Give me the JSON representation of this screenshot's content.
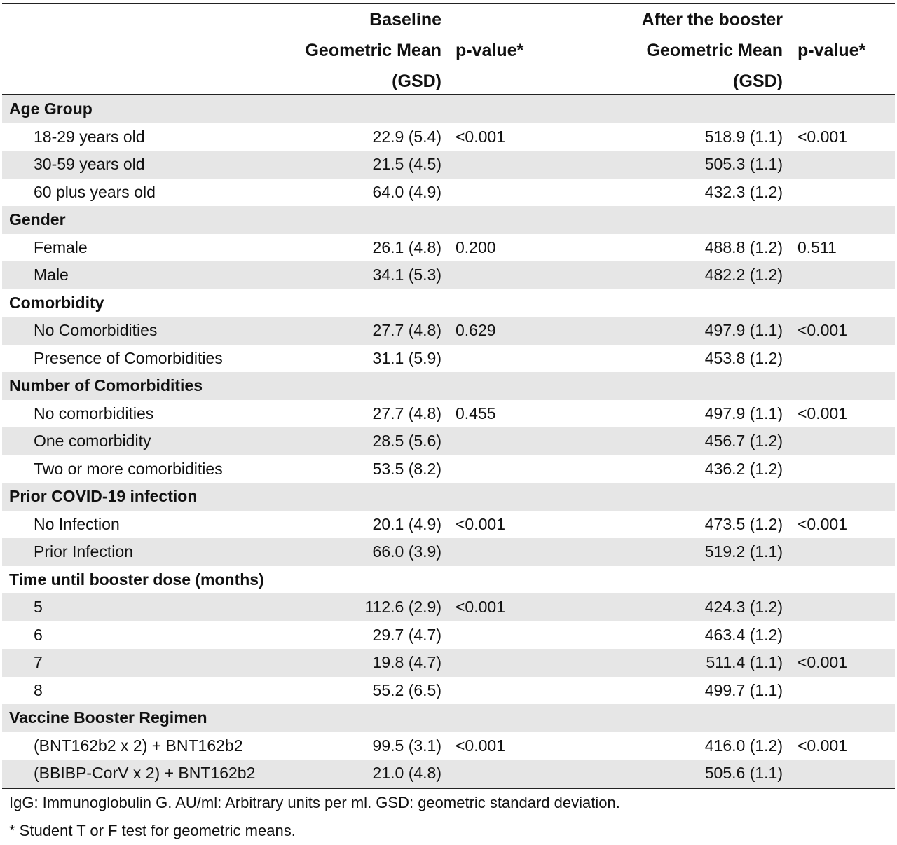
{
  "header": {
    "baseline_line1": "Baseline",
    "baseline_line2": "Geometric Mean",
    "baseline_line3": "(GSD)",
    "pvalue1": "p-value*",
    "after_line1": "After the booster",
    "after_line2": "Geometric Mean",
    "after_line3": "(GSD)",
    "pvalue2": "p-value*"
  },
  "rows": [
    {
      "label": "Age Group",
      "group": true
    },
    {
      "label": "18-29 years old",
      "base": "22.9 (5.4)",
      "pv1": "<0.001",
      "after": "518.9 (1.1)",
      "pv2": "<0.001"
    },
    {
      "label": "30-59 years old",
      "base": "21.5 (4.5)",
      "pv1": "",
      "after": "505.3 (1.1)",
      "pv2": ""
    },
    {
      "label": "60 plus years old",
      "base": "64.0 (4.9)",
      "pv1": "",
      "after": "432.3 (1.2)",
      "pv2": ""
    },
    {
      "label": "Gender",
      "group": true
    },
    {
      "label": "Female",
      "base": "26.1 (4.8)",
      "pv1": "0.200",
      "after": "488.8 (1.2)",
      "pv2": "0.511"
    },
    {
      "label": "Male",
      "base": "34.1 (5.3)",
      "pv1": "",
      "after": "482.2 (1.2)",
      "pv2": ""
    },
    {
      "label": "Comorbidity",
      "group": true
    },
    {
      "label": "No Comorbidities",
      "base": "27.7 (4.8)",
      "pv1": "0.629",
      "after": "497.9 (1.1)",
      "pv2": "<0.001"
    },
    {
      "label": "Presence of Comorbidities",
      "base": "31.1 (5.9)",
      "pv1": "",
      "after": "453.8 (1.2)",
      "pv2": ""
    },
    {
      "label": "Number of Comorbidities",
      "group": true
    },
    {
      "label": "No comorbidities",
      "base": "27.7 (4.8)",
      "pv1": "0.455",
      "after": "497.9 (1.1)",
      "pv2": "<0.001"
    },
    {
      "label": "One comorbidity",
      "base": "28.5 (5.6)",
      "pv1": "",
      "after": "456.7 (1.2)",
      "pv2": ""
    },
    {
      "label": "Two or more comorbidities",
      "base": "53.5 (8.2)",
      "pv1": "",
      "after": "436.2 (1.2)",
      "pv2": ""
    },
    {
      "label": "Prior COVID-19 infection",
      "group": true
    },
    {
      "label": "No Infection",
      "base": "20.1 (4.9)",
      "pv1": "<0.001",
      "after": "473.5 (1.2)",
      "pv2": "<0.001"
    },
    {
      "label": "Prior Infection",
      "base": "66.0 (3.9)",
      "pv1": "",
      "after": "519.2 (1.1)",
      "pv2": ""
    },
    {
      "label": "Time until booster dose (months)",
      "group": true
    },
    {
      "label": "5",
      "base": "112.6 (2.9)",
      "pv1": "<0.001",
      "after": "424.3 (1.2)",
      "pv2": ""
    },
    {
      "label": "6",
      "base": "29.7 (4.7)",
      "pv1": "",
      "after": "463.4 (1.2)",
      "pv2": ""
    },
    {
      "label": "7",
      "base": "19.8 (4.7)",
      "pv1": "",
      "after": "511.4 (1.1)",
      "pv2": "<0.001"
    },
    {
      "label": "8",
      "base": "55.2 (6.5)",
      "pv1": "",
      "after": "499.7 (1.1)",
      "pv2": ""
    },
    {
      "label": "Vaccine Booster Regimen",
      "group": true
    },
    {
      "label": "(BNT162b2 x 2) + BNT162b2",
      "base": "99.5 (3.1)",
      "pv1": "<0.001",
      "after": "416.0 (1.2)",
      "pv2": "<0.001"
    },
    {
      "label": "(BBIBP-CorV x 2) + BNT162b2",
      "base": "21.0 (4.8)",
      "pv1": "",
      "after": "505.6 (1.1)",
      "pv2": ""
    }
  ],
  "notes": {
    "line1": "IgG: Immunoglobulin G. AU/ml: Arbitrary units per ml. GSD: geometric standard deviation.",
    "line2": "* Student T or F test for geometric means."
  }
}
